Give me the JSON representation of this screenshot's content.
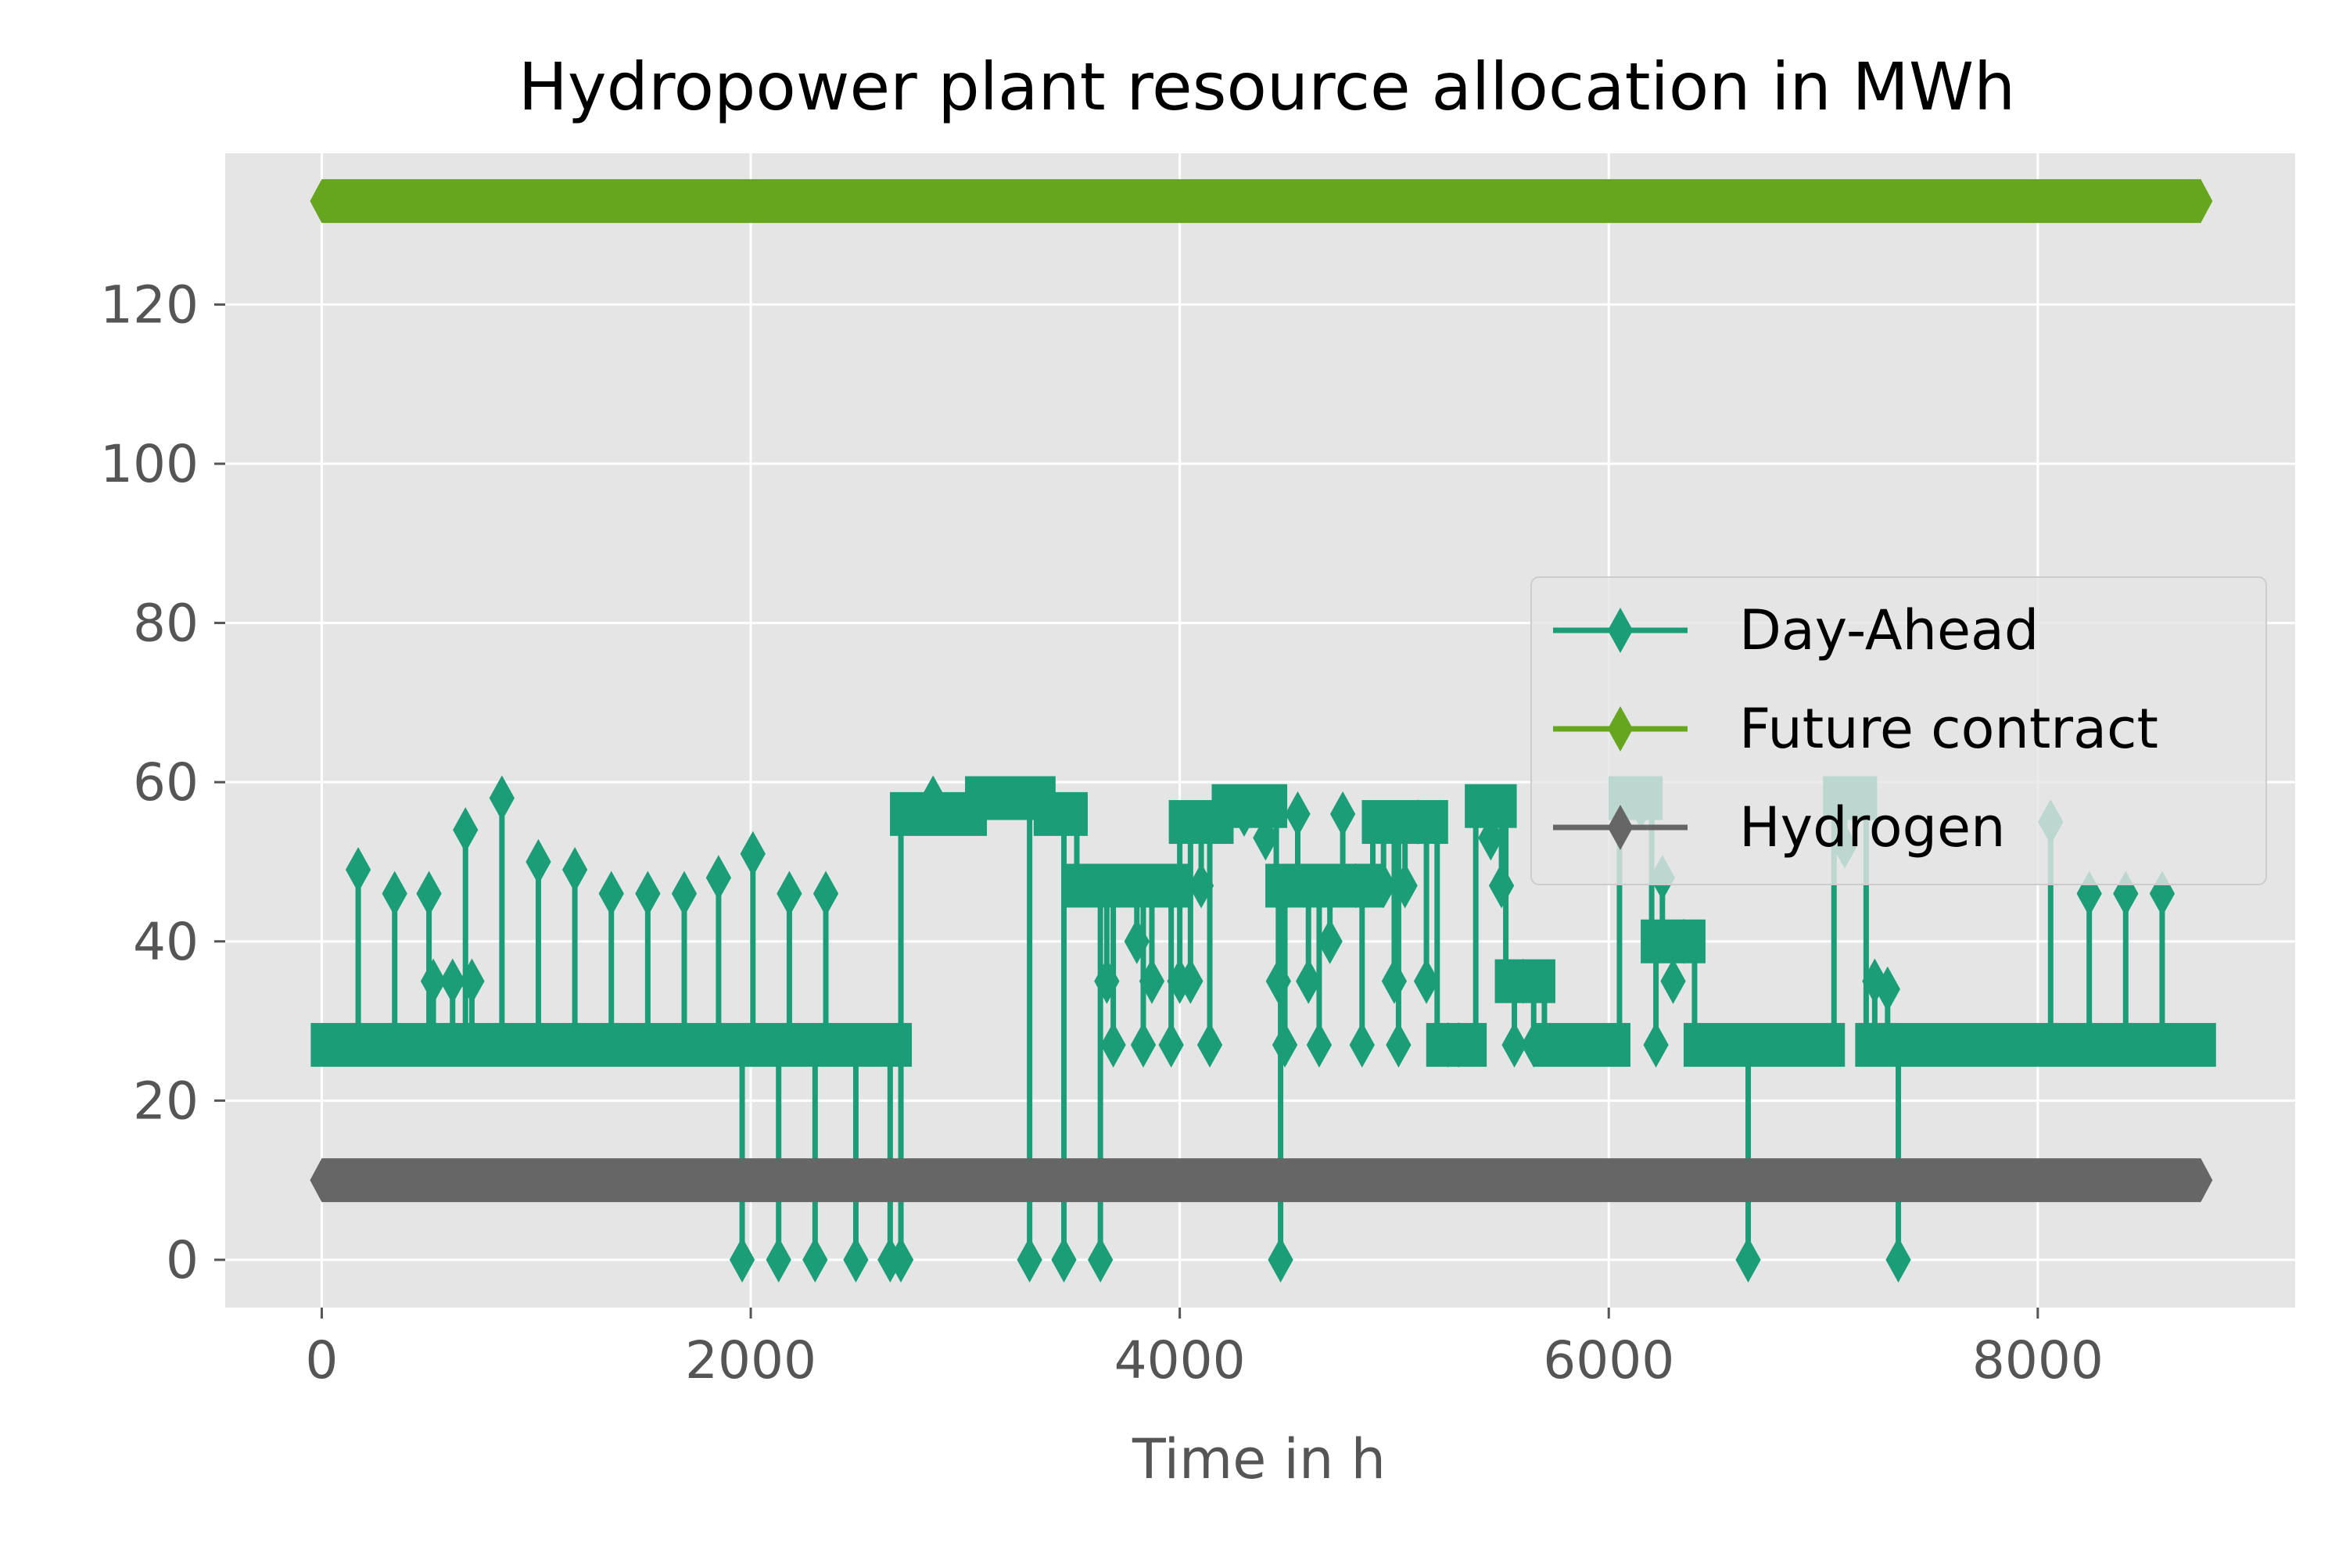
{
  "chart_data": {
    "type": "line",
    "title": "Hydropower plant resource allocation in MWh",
    "xlabel": "Time in h",
    "ylabel": "",
    "xlim": [
      -450,
      9200
    ],
    "ylim": [
      -6,
      139
    ],
    "xticks": [
      0,
      2000,
      4000,
      6000,
      8000
    ],
    "xtick_labels": [
      "0",
      "2000",
      "4000",
      "6000",
      "8000"
    ],
    "yticks": [
      0,
      20,
      40,
      60,
      80,
      100,
      120
    ],
    "ytick_labels": [
      "0",
      "20",
      "40",
      "60",
      "80",
      "100",
      "120"
    ],
    "grid": true,
    "legend_position": "center-right",
    "marker": "thin-diamond",
    "series": [
      {
        "name": "Day-Ahead",
        "color": "#1b9e77",
        "style": "dense-steps",
        "segments": [
          {
            "x": [
              0,
              2700
            ],
            "base": 27,
            "spikes": [
              [
                170,
                49
              ],
              [
                340,
                46
              ],
              [
                500,
                46
              ],
              [
                520,
                35
              ],
              [
                610,
                35
              ],
              [
                670,
                54
              ],
              [
                700,
                35
              ],
              [
                840,
                58
              ],
              [
                1010,
                50
              ],
              [
                1180,
                49
              ],
              [
                1350,
                46
              ],
              [
                1520,
                46
              ],
              [
                1690,
                46
              ],
              [
                1850,
                48
              ],
              [
                2010,
                51
              ],
              [
                2180,
                46
              ],
              [
                2350,
                46
              ],
              [
                1960,
                0
              ],
              [
                2130,
                0
              ],
              [
                2300,
                0
              ],
              [
                2490,
                0
              ],
              [
                2650,
                0
              ],
              [
                2700,
                0
              ]
            ]
          },
          {
            "x": [
              2700,
              3050
            ],
            "base": 56,
            "spikes": [
              [
                2850,
                58
              ]
            ]
          },
          {
            "x": [
              3050,
              3370
            ],
            "base": 58,
            "spikes": [
              [
                3300,
                0
              ]
            ]
          },
          {
            "x": [
              3370,
              3520
            ],
            "base": 56,
            "spikes": [
              [
                3460,
                0
              ]
            ]
          },
          {
            "x": [
              3520,
              3900
            ],
            "base": 47,
            "spikes": [
              [
                3630,
                0
              ],
              [
                3660,
                35
              ],
              [
                3690,
                27
              ],
              [
                3800,
                40
              ],
              [
                3830,
                27
              ],
              [
                3870,
                35
              ]
            ]
          },
          {
            "x": [
              3900,
              4000
            ],
            "base": 47,
            "spikes": [
              [
                3960,
                27
              ],
              [
                4000,
                35
              ]
            ]
          },
          {
            "x": [
              4000,
              4200
            ],
            "base": 55,
            "spikes": [
              [
                4050,
                35
              ],
              [
                4100,
                47
              ],
              [
                4140,
                27
              ]
            ]
          },
          {
            "x": [
              4200,
              4450
            ],
            "base": 57,
            "spikes": [
              [
                4300,
                56
              ],
              [
                4400,
                53
              ]
            ]
          },
          {
            "x": [
              4450,
              4900
            ],
            "base": 47,
            "spikes": [
              [
                4470,
                0
              ],
              [
                4460,
                35
              ],
              [
                4490,
                27
              ],
              [
                4550,
                56
              ],
              [
                4600,
                35
              ],
              [
                4650,
                27
              ],
              [
                4700,
                40
              ],
              [
                4760,
                56
              ],
              [
                4820,
                47
              ],
              [
                4850,
                27
              ]
            ]
          },
          {
            "x": [
              4900,
              5200
            ],
            "base": 55,
            "spikes": [
              [
                4950,
                47
              ],
              [
                5000,
                35
              ],
              [
                5020,
                27
              ],
              [
                5050,
                47
              ],
              [
                5110,
                55
              ],
              [
                5150,
                35
              ]
            ]
          },
          {
            "x": [
              5200,
              5380
            ],
            "base": 27,
            "spikes": [
              [
                5250,
                27
              ],
              [
                5300,
                27
              ]
            ]
          },
          {
            "x": [
              5380,
              5520
            ],
            "base": 57,
            "spikes": [
              [
                5450,
                53
              ],
              [
                5500,
                47
              ]
            ]
          },
          {
            "x": [
              5520,
              5700
            ],
            "base": 35,
            "spikes": [
              [
                5560,
                27
              ],
              [
                5600,
                35
              ],
              [
                5650,
                27
              ]
            ]
          },
          {
            "x": [
              5700,
              6050
            ],
            "base": 27,
            "spikes": []
          },
          {
            "x": [
              6050,
              6200
            ],
            "base": 58,
            "spikes": [
              [
                6150,
                57
              ]
            ]
          },
          {
            "x": [
              6200,
              6400
            ],
            "base": 40,
            "spikes": [
              [
                6220,
                27
              ],
              [
                6250,
                48
              ],
              [
                6300,
                35
              ],
              [
                6350,
                40
              ]
            ]
          },
          {
            "x": [
              6400,
              7050
            ],
            "base": 27,
            "spikes": [
              [
                6650,
                0
              ]
            ]
          },
          {
            "x": [
              7050,
              7200
            ],
            "base": 58,
            "spikes": [
              [
                7100,
                52
              ],
              [
                7150,
                58
              ]
            ]
          },
          {
            "x": [
              7200,
              8780
            ],
            "base": 27,
            "spikes": [
              [
                7240,
                35
              ],
              [
                7300,
                34
              ],
              [
                7350,
                0
              ],
              [
                8060,
                55
              ],
              [
                8240,
                46
              ],
              [
                8410,
                46
              ],
              [
                8580,
                46
              ]
            ]
          }
        ]
      },
      {
        "name": "Future contract",
        "color": "#66a61e",
        "style": "constant",
        "x": [
          0,
          8760
        ],
        "value": 133
      },
      {
        "name": "Hydrogen",
        "color": "#666666",
        "style": "constant",
        "x": [
          0,
          8760
        ],
        "value": 10
      }
    ]
  }
}
